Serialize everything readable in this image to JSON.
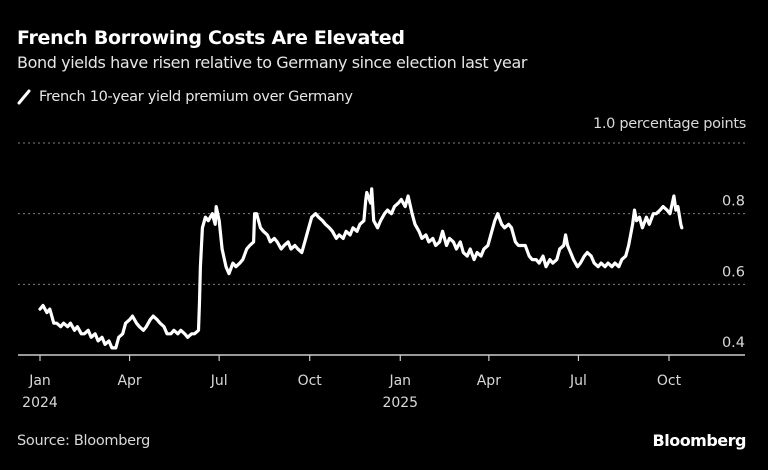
{
  "header": {
    "title": "French Borrowing Costs Are Elevated",
    "subtitle": "Bond yields have risen relative to Germany since election last year"
  },
  "footer": {
    "source": "Source: Bloomberg",
    "brand": "Bloomberg"
  },
  "colors": {
    "background": "#000000",
    "line": "#ffffff",
    "grid": "#808080",
    "text": "#d9d9d9"
  },
  "chart_data": {
    "type": "line",
    "title": "French Borrowing Costs Are Elevated",
    "subtitle": "Bond yields have risen relative to Germany since election last year",
    "xlabel": "",
    "ylabel": "percentage points",
    "unit_label": "1.0 percentage points",
    "ylim": [
      0.4,
      1.0
    ],
    "yticks": [
      {
        "value": 1.0,
        "label": "1.0 percentage points"
      },
      {
        "value": 0.8,
        "label": "0.8"
      },
      {
        "value": 0.6,
        "label": "0.6"
      },
      {
        "value": 0.4,
        "label": "0.4"
      }
    ],
    "xlim": [
      "2023-12-20",
      "2025-12-20"
    ],
    "xticks": [
      {
        "date": "2024-01-01",
        "label": "Jan",
        "year": "2024"
      },
      {
        "date": "2024-04-01",
        "label": "Apr",
        "year": ""
      },
      {
        "date": "2024-07-01",
        "label": "Jul",
        "year": ""
      },
      {
        "date": "2024-10-01",
        "label": "Oct",
        "year": ""
      },
      {
        "date": "2025-01-01",
        "label": "Jan",
        "year": "2025"
      },
      {
        "date": "2025-04-01",
        "label": "Apr",
        "year": ""
      },
      {
        "date": "2025-07-01",
        "label": "Jul",
        "year": ""
      },
      {
        "date": "2025-10-01",
        "label": "Oct",
        "year": ""
      }
    ],
    "grid": true,
    "legend": "top-left",
    "series": [
      {
        "name": "French 10-year yield premium over Germany",
        "color": "#ffffff",
        "points": [
          [
            "2024-01-01",
            0.53
          ],
          [
            "2024-01-04",
            0.54
          ],
          [
            "2024-01-08",
            0.52
          ],
          [
            "2024-01-11",
            0.53
          ],
          [
            "2024-01-15",
            0.49
          ],
          [
            "2024-01-18",
            0.49
          ],
          [
            "2024-01-22",
            0.48
          ],
          [
            "2024-01-25",
            0.49
          ],
          [
            "2024-01-29",
            0.48
          ],
          [
            "2024-02-01",
            0.49
          ],
          [
            "2024-02-05",
            0.47
          ],
          [
            "2024-02-08",
            0.48
          ],
          [
            "2024-02-12",
            0.46
          ],
          [
            "2024-02-15",
            0.46
          ],
          [
            "2024-02-19",
            0.47
          ],
          [
            "2024-02-22",
            0.45
          ],
          [
            "2024-02-26",
            0.46
          ],
          [
            "2024-02-29",
            0.44
          ],
          [
            "2024-03-04",
            0.45
          ],
          [
            "2024-03-07",
            0.43
          ],
          [
            "2024-03-11",
            0.44
          ],
          [
            "2024-03-14",
            0.42
          ],
          [
            "2024-03-18",
            0.42
          ],
          [
            "2024-03-21",
            0.45
          ],
          [
            "2024-03-25",
            0.46
          ],
          [
            "2024-03-28",
            0.49
          ],
          [
            "2024-04-01",
            0.5
          ],
          [
            "2024-04-04",
            0.51
          ],
          [
            "2024-04-08",
            0.49
          ],
          [
            "2024-04-11",
            0.48
          ],
          [
            "2024-04-15",
            0.47
          ],
          [
            "2024-04-18",
            0.48
          ],
          [
            "2024-04-22",
            0.5
          ],
          [
            "2024-04-25",
            0.51
          ],
          [
            "2024-04-29",
            0.5
          ],
          [
            "2024-05-02",
            0.49
          ],
          [
            "2024-05-06",
            0.48
          ],
          [
            "2024-05-09",
            0.46
          ],
          [
            "2024-05-13",
            0.46
          ],
          [
            "2024-05-16",
            0.47
          ],
          [
            "2024-05-20",
            0.46
          ],
          [
            "2024-05-23",
            0.47
          ],
          [
            "2024-05-27",
            0.46
          ],
          [
            "2024-05-30",
            0.45
          ],
          [
            "2024-06-03",
            0.46
          ],
          [
            "2024-06-06",
            0.46
          ],
          [
            "2024-06-10",
            0.47
          ],
          [
            "2024-06-11",
            0.55
          ],
          [
            "2024-06-12",
            0.65
          ],
          [
            "2024-06-14",
            0.76
          ],
          [
            "2024-06-17",
            0.79
          ],
          [
            "2024-06-20",
            0.78
          ],
          [
            "2024-06-24",
            0.8
          ],
          [
            "2024-06-27",
            0.77
          ],
          [
            "2024-06-28",
            0.82
          ],
          [
            "2024-07-01",
            0.78
          ],
          [
            "2024-07-04",
            0.7
          ],
          [
            "2024-07-08",
            0.65
          ],
          [
            "2024-07-11",
            0.63
          ],
          [
            "2024-07-15",
            0.66
          ],
          [
            "2024-07-18",
            0.65
          ],
          [
            "2024-07-22",
            0.66
          ],
          [
            "2024-07-25",
            0.67
          ],
          [
            "2024-07-29",
            0.7
          ],
          [
            "2024-08-01",
            0.71
          ],
          [
            "2024-08-05",
            0.72
          ],
          [
            "2024-08-06",
            0.8
          ],
          [
            "2024-08-08",
            0.8
          ],
          [
            "2024-08-12",
            0.76
          ],
          [
            "2024-08-15",
            0.75
          ],
          [
            "2024-08-19",
            0.74
          ],
          [
            "2024-08-22",
            0.72
          ],
          [
            "2024-08-26",
            0.73
          ],
          [
            "2024-08-29",
            0.72
          ],
          [
            "2024-09-02",
            0.7
          ],
          [
            "2024-09-05",
            0.71
          ],
          [
            "2024-09-09",
            0.72
          ],
          [
            "2024-09-12",
            0.7
          ],
          [
            "2024-09-16",
            0.71
          ],
          [
            "2024-09-19",
            0.7
          ],
          [
            "2024-09-23",
            0.69
          ],
          [
            "2024-09-26",
            0.72
          ],
          [
            "2024-09-30",
            0.76
          ],
          [
            "2024-10-03",
            0.79
          ],
          [
            "2024-10-07",
            0.8
          ],
          [
            "2024-10-10",
            0.79
          ],
          [
            "2024-10-14",
            0.78
          ],
          [
            "2024-10-17",
            0.77
          ],
          [
            "2024-10-21",
            0.76
          ],
          [
            "2024-10-24",
            0.75
          ],
          [
            "2024-10-28",
            0.73
          ],
          [
            "2024-10-31",
            0.74
          ],
          [
            "2024-11-04",
            0.73
          ],
          [
            "2024-11-07",
            0.75
          ],
          [
            "2024-11-11",
            0.74
          ],
          [
            "2024-11-14",
            0.76
          ],
          [
            "2024-11-18",
            0.75
          ],
          [
            "2024-11-21",
            0.77
          ],
          [
            "2024-11-25",
            0.78
          ],
          [
            "2024-11-27",
            0.84
          ],
          [
            "2024-11-28",
            0.86
          ],
          [
            "2024-12-02",
            0.83
          ],
          [
            "2024-12-03",
            0.87
          ],
          [
            "2024-12-05",
            0.78
          ],
          [
            "2024-12-09",
            0.76
          ],
          [
            "2024-12-12",
            0.78
          ],
          [
            "2024-12-16",
            0.8
          ],
          [
            "2024-12-19",
            0.81
          ],
          [
            "2024-12-23",
            0.8
          ],
          [
            "2024-12-26",
            0.82
          ],
          [
            "2024-12-30",
            0.83
          ],
          [
            "2025-01-02",
            0.84
          ],
          [
            "2025-01-06",
            0.82
          ],
          [
            "2025-01-09",
            0.85
          ],
          [
            "2025-01-13",
            0.8
          ],
          [
            "2025-01-16",
            0.77
          ],
          [
            "2025-01-20",
            0.75
          ],
          [
            "2025-01-23",
            0.73
          ],
          [
            "2025-01-27",
            0.74
          ],
          [
            "2025-01-30",
            0.72
          ],
          [
            "2025-02-03",
            0.73
          ],
          [
            "2025-02-06",
            0.71
          ],
          [
            "2025-02-10",
            0.72
          ],
          [
            "2025-02-13",
            0.75
          ],
          [
            "2025-02-17",
            0.71
          ],
          [
            "2025-02-20",
            0.73
          ],
          [
            "2025-02-24",
            0.72
          ],
          [
            "2025-02-27",
            0.7
          ],
          [
            "2025-03-03",
            0.72
          ],
          [
            "2025-03-06",
            0.69
          ],
          [
            "2025-03-10",
            0.68
          ],
          [
            "2025-03-13",
            0.7
          ],
          [
            "2025-03-17",
            0.67
          ],
          [
            "2025-03-20",
            0.69
          ],
          [
            "2025-03-24",
            0.68
          ],
          [
            "2025-03-27",
            0.7
          ],
          [
            "2025-03-31",
            0.71
          ],
          [
            "2025-04-03",
            0.74
          ],
          [
            "2025-04-07",
            0.78
          ],
          [
            "2025-04-10",
            0.8
          ],
          [
            "2025-04-14",
            0.77
          ],
          [
            "2025-04-17",
            0.76
          ],
          [
            "2025-04-21",
            0.77
          ],
          [
            "2025-04-24",
            0.76
          ],
          [
            "2025-04-28",
            0.72
          ],
          [
            "2025-05-01",
            0.71
          ],
          [
            "2025-05-05",
            0.71
          ],
          [
            "2025-05-08",
            0.71
          ],
          [
            "2025-05-12",
            0.68
          ],
          [
            "2025-05-15",
            0.67
          ],
          [
            "2025-05-19",
            0.67
          ],
          [
            "2025-05-22",
            0.66
          ],
          [
            "2025-05-26",
            0.68
          ],
          [
            "2025-05-29",
            0.65
          ],
          [
            "2025-06-02",
            0.67
          ],
          [
            "2025-06-05",
            0.66
          ],
          [
            "2025-06-09",
            0.67
          ],
          [
            "2025-06-12",
            0.7
          ],
          [
            "2025-06-16",
            0.71
          ],
          [
            "2025-06-18",
            0.74
          ],
          [
            "2025-06-20",
            0.71
          ],
          [
            "2025-06-23",
            0.69
          ],
          [
            "2025-06-26",
            0.67
          ],
          [
            "2025-06-30",
            0.65
          ],
          [
            "2025-07-03",
            0.66
          ],
          [
            "2025-07-07",
            0.68
          ],
          [
            "2025-07-10",
            0.69
          ],
          [
            "2025-07-14",
            0.68
          ],
          [
            "2025-07-17",
            0.66
          ],
          [
            "2025-07-21",
            0.65
          ],
          [
            "2025-07-24",
            0.66
          ],
          [
            "2025-07-28",
            0.65
          ],
          [
            "2025-07-31",
            0.66
          ],
          [
            "2025-08-04",
            0.65
          ],
          [
            "2025-08-07",
            0.66
          ],
          [
            "2025-08-11",
            0.65
          ],
          [
            "2025-08-14",
            0.67
          ],
          [
            "2025-08-18",
            0.68
          ],
          [
            "2025-08-21",
            0.71
          ],
          [
            "2025-08-25",
            0.77
          ],
          [
            "2025-08-27",
            0.81
          ],
          [
            "2025-08-29",
            0.78
          ],
          [
            "2025-09-01",
            0.79
          ],
          [
            "2025-09-04",
            0.76
          ],
          [
            "2025-09-08",
            0.79
          ],
          [
            "2025-09-11",
            0.77
          ],
          [
            "2025-09-15",
            0.8
          ],
          [
            "2025-09-18",
            0.8
          ],
          [
            "2025-09-22",
            0.81
          ],
          [
            "2025-09-25",
            0.82
          ],
          [
            "2025-09-29",
            0.81
          ],
          [
            "2025-10-02",
            0.8
          ],
          [
            "2025-10-06",
            0.85
          ],
          [
            "2025-10-08",
            0.81
          ],
          [
            "2025-10-10",
            0.82
          ],
          [
            "2025-10-13",
            0.77
          ],
          [
            "2025-10-14",
            0.76
          ]
        ]
      }
    ]
  }
}
